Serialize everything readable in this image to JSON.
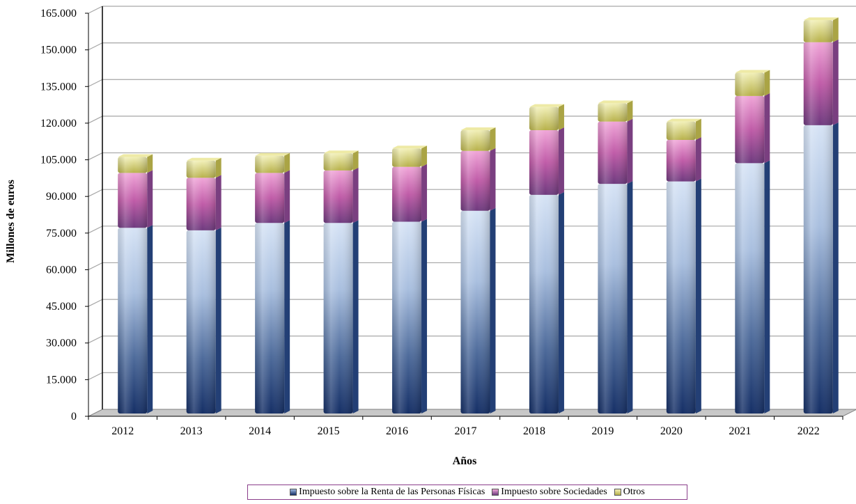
{
  "chart_data": {
    "type": "bar",
    "stacked": true,
    "categories": [
      "2012",
      "2013",
      "2014",
      "2015",
      "2016",
      "2017",
      "2018",
      "2019",
      "2020",
      "2021",
      "2022"
    ],
    "series": [
      {
        "name": "Impuesto sobre la Renta de las Personas Físicas",
        "values": [
          76000,
          75000,
          78000,
          78000,
          78500,
          83000,
          89500,
          94000,
          95000,
          102500,
          118000
        ],
        "color": "#9db8e0"
      },
      {
        "name": "Impuesto sobre Sociedades",
        "values": [
          22500,
          21500,
          20500,
          21500,
          22500,
          24500,
          26500,
          25500,
          17000,
          27500,
          34000
        ],
        "color": "#c75aa8"
      },
      {
        "name": "Otros",
        "values": [
          6500,
          7000,
          7000,
          7000,
          7500,
          8500,
          9500,
          7500,
          7500,
          9500,
          9000
        ],
        "color": "#e0dc7a"
      }
    ],
    "ylim": [
      0,
      165000
    ],
    "yticks": [
      "0",
      "15.000",
      "30.000",
      "45.000",
      "60.000",
      "75.000",
      "90.000",
      "105.000",
      "120.000",
      "135.000",
      "150.000",
      "165.000"
    ],
    "xlabel": "Años",
    "ylabel": "Millones de euros",
    "grid": true,
    "legend_position": "bottom"
  }
}
